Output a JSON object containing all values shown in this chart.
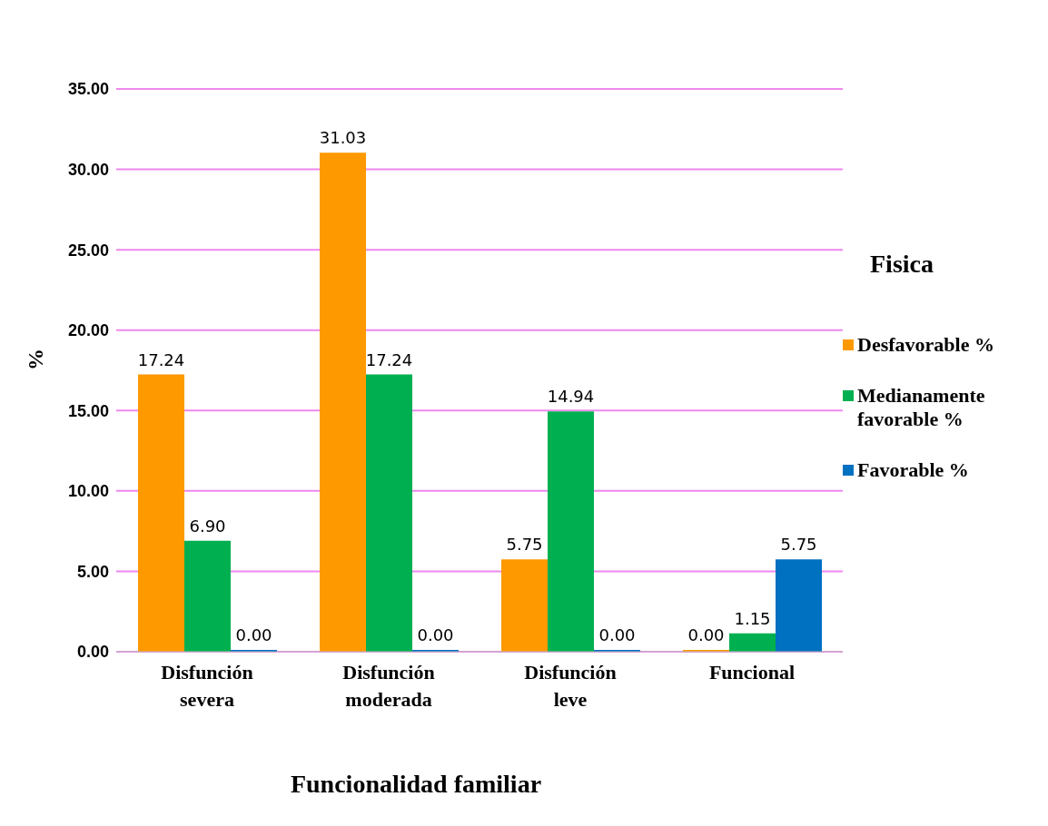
{
  "chart_data": {
    "type": "bar",
    "xlabel": "Funcionalidad familiar",
    "ylabel": "%",
    "legend_title": "Fisica",
    "legend": "right",
    "categories": [
      "Disfunción severa",
      "Disfunción moderada",
      "Disfunción leve",
      "Funcional"
    ],
    "series": [
      {
        "name": "Desfavorable %",
        "color": "#ff9900",
        "values": [
          17.24,
          31.03,
          5.75,
          0.0
        ],
        "value_labels": [
          "17.24",
          "31.03",
          "5.75",
          "0.00"
        ]
      },
      {
        "name": "Medianamente favorable %",
        "color": "#00b050",
        "values": [
          6.9,
          17.24,
          14.94,
          1.15
        ],
        "value_labels": [
          "6.90",
          "17.24",
          "14.94",
          "1.15"
        ]
      },
      {
        "name": "Favorable %",
        "color": "#0070c0",
        "values": [
          0.0,
          0.0,
          0.0,
          5.75
        ],
        "value_labels": [
          "0.00",
          "0.00",
          "0.00",
          "5.75"
        ]
      }
    ],
    "ylim": [
      0,
      35
    ],
    "yticks": [
      {
        "value": 0,
        "label": "0.00"
      },
      {
        "value": 5,
        "label": "5.00"
      },
      {
        "value": 10,
        "label": "10.00"
      },
      {
        "value": 15,
        "label": "15.00"
      },
      {
        "value": 20,
        "label": "20.00"
      },
      {
        "value": 25,
        "label": "25.00"
      },
      {
        "value": 30,
        "label": "30.00"
      },
      {
        "value": 35,
        "label": "35.00"
      }
    ],
    "grid": "y"
  }
}
